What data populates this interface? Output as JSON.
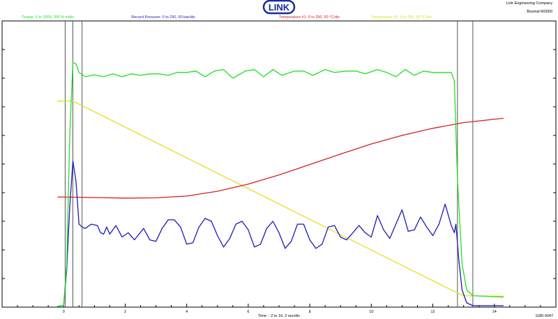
{
  "header": {
    "logo_text": "LINK",
    "company": "Link Engineering Company",
    "machine": "Bosmal M3000"
  },
  "footer": {
    "xlabel": "Time : -2 to 16, 2 sec/div",
    "id": "1180.0047"
  },
  "colors": {
    "torque": "#22e022",
    "pressure": "#1a1ab8",
    "temp1": "#d42020",
    "temp2": "#e0e020",
    "logo": "#1a2a9a",
    "frame": "#000000",
    "cursor": "#555555"
  },
  "chart_data": {
    "type": "line",
    "title": "",
    "xlabel": "Time : -2 to 16, 2 sec/div",
    "xlim": [
      -2,
      16
    ],
    "ylim": [
      0,
      10
    ],
    "grid": false,
    "legend_position": "top",
    "x_ticks": [
      0,
      2,
      4,
      6,
      8,
      10,
      12,
      14
    ],
    "cursors_x": [
      0.05,
      0.3,
      0.6,
      12.8,
      13.3
    ],
    "series": [
      {
        "name": "Torque: 0 to 2000, 200 N m/div",
        "color": "#22e022",
        "points": [
          [
            -0.2,
            0.03
          ],
          [
            0.0,
            0.05
          ],
          [
            0.1,
            1.5
          ],
          [
            0.2,
            6.0
          ],
          [
            0.3,
            8.55
          ],
          [
            0.4,
            8.5
          ],
          [
            0.5,
            8.2
          ],
          [
            0.7,
            8.05
          ],
          [
            1.0,
            8.12
          ],
          [
            1.3,
            8.05
          ],
          [
            1.6,
            8.15
          ],
          [
            1.9,
            8.05
          ],
          [
            2.2,
            8.15
          ],
          [
            2.5,
            8.1
          ],
          [
            2.8,
            8.15
          ],
          [
            3.1,
            8.15
          ],
          [
            3.4,
            8.1
          ],
          [
            3.7,
            8.2
          ],
          [
            4.0,
            8.2
          ],
          [
            4.3,
            8.25
          ],
          [
            4.6,
            8.05
          ],
          [
            4.9,
            8.25
          ],
          [
            5.2,
            8.3
          ],
          [
            5.5,
            8.0
          ],
          [
            5.9,
            8.25
          ],
          [
            6.2,
            8.3
          ],
          [
            6.5,
            8.05
          ],
          [
            6.8,
            8.3
          ],
          [
            7.1,
            8.1
          ],
          [
            7.5,
            8.25
          ],
          [
            7.8,
            8.25
          ],
          [
            8.1,
            8.1
          ],
          [
            8.5,
            8.3
          ],
          [
            8.8,
            8.2
          ],
          [
            9.2,
            8.25
          ],
          [
            9.5,
            8.25
          ],
          [
            9.8,
            8.15
          ],
          [
            10.2,
            8.3
          ],
          [
            10.5,
            8.2
          ],
          [
            10.8,
            8.05
          ],
          [
            11.1,
            8.3
          ],
          [
            11.4,
            8.1
          ],
          [
            11.7,
            8.25
          ],
          [
            12.0,
            8.2
          ],
          [
            12.3,
            8.2
          ],
          [
            12.6,
            8.2
          ],
          [
            12.7,
            7.9
          ],
          [
            12.8,
            4.5
          ],
          [
            12.95,
            1.5
          ],
          [
            13.1,
            0.6
          ],
          [
            13.3,
            0.4
          ],
          [
            14.3,
            0.35
          ]
        ]
      },
      {
        "name": "Record Pressure: 0 to 250, 50 bar/div",
        "color": "#1a1ab8",
        "points": [
          [
            -0.2,
            0.03
          ],
          [
            0.0,
            0.05
          ],
          [
            0.1,
            1.3
          ],
          [
            0.2,
            3.5
          ],
          [
            0.3,
            5.1
          ],
          [
            0.4,
            4.4
          ],
          [
            0.5,
            2.9
          ],
          [
            0.6,
            2.8
          ],
          [
            0.7,
            2.75
          ],
          [
            0.9,
            2.9
          ],
          [
            1.1,
            2.85
          ],
          [
            1.2,
            2.6
          ],
          [
            1.3,
            2.55
          ],
          [
            1.4,
            2.8
          ],
          [
            1.5,
            2.55
          ],
          [
            1.7,
            2.85
          ],
          [
            1.9,
            2.45
          ],
          [
            2.1,
            2.6
          ],
          [
            2.3,
            2.35
          ],
          [
            2.6,
            2.75
          ],
          [
            2.8,
            2.35
          ],
          [
            3.0,
            2.3
          ],
          [
            3.2,
            2.75
          ],
          [
            3.4,
            3.05
          ],
          [
            3.6,
            3.05
          ],
          [
            3.8,
            2.8
          ],
          [
            4.0,
            2.2
          ],
          [
            4.2,
            2.25
          ],
          [
            4.4,
            2.8
          ],
          [
            4.6,
            3.1
          ],
          [
            4.8,
            3.0
          ],
          [
            5.0,
            2.5
          ],
          [
            5.2,
            2.1
          ],
          [
            5.4,
            2.4
          ],
          [
            5.6,
            2.9
          ],
          [
            5.8,
            3.0
          ],
          [
            6.0,
            2.7
          ],
          [
            6.2,
            2.1
          ],
          [
            6.4,
            2.2
          ],
          [
            6.6,
            2.75
          ],
          [
            6.8,
            3.0
          ],
          [
            7.0,
            2.6
          ],
          [
            7.2,
            2.05
          ],
          [
            7.4,
            2.3
          ],
          [
            7.6,
            2.9
          ],
          [
            7.8,
            2.9
          ],
          [
            8.0,
            2.35
          ],
          [
            8.2,
            2.05
          ],
          [
            8.4,
            2.2
          ],
          [
            8.6,
            2.8
          ],
          [
            8.8,
            2.85
          ],
          [
            9.0,
            2.45
          ],
          [
            9.2,
            2.35
          ],
          [
            9.4,
            2.6
          ],
          [
            9.6,
            2.85
          ],
          [
            9.8,
            2.6
          ],
          [
            10.0,
            2.45
          ],
          [
            10.2,
            3.2
          ],
          [
            10.4,
            2.7
          ],
          [
            10.6,
            2.4
          ],
          [
            10.8,
            2.9
          ],
          [
            11.0,
            3.4
          ],
          [
            11.2,
            2.65
          ],
          [
            11.4,
            2.7
          ],
          [
            11.6,
            3.15
          ],
          [
            11.8,
            2.8
          ],
          [
            12.0,
            2.5
          ],
          [
            12.2,
            2.9
          ],
          [
            12.4,
            3.6
          ],
          [
            12.6,
            2.85
          ],
          [
            12.7,
            2.6
          ],
          [
            12.75,
            2.9
          ],
          [
            12.85,
            1.6
          ],
          [
            12.95,
            0.6
          ],
          [
            13.1,
            0.15
          ],
          [
            13.3,
            0.05
          ],
          [
            14.3,
            0.05
          ]
        ]
      },
      {
        "name": "Temperature #1: 0 to 250, 50 °C/div",
        "color": "#d42020",
        "points": [
          [
            -0.2,
            3.85
          ],
          [
            1.0,
            3.83
          ],
          [
            2.0,
            3.81
          ],
          [
            3.0,
            3.82
          ],
          [
            4.0,
            3.88
          ],
          [
            5.0,
            4.05
          ],
          [
            6.0,
            4.3
          ],
          [
            7.0,
            4.62
          ],
          [
            8.0,
            4.98
          ],
          [
            9.0,
            5.35
          ],
          [
            10.0,
            5.7
          ],
          [
            11.0,
            6.0
          ],
          [
            12.0,
            6.25
          ],
          [
            13.0,
            6.45
          ],
          [
            14.3,
            6.6
          ]
        ]
      },
      {
        "name": "Temperature #2: 0 to 250, 50 °C/div",
        "color": "#e0e020",
        "points": [
          [
            -0.2,
            7.2
          ],
          [
            0.3,
            7.2
          ],
          [
            12.6,
            0.6
          ],
          [
            13.0,
            0.4
          ],
          [
            14.3,
            0.38
          ]
        ]
      }
    ]
  }
}
